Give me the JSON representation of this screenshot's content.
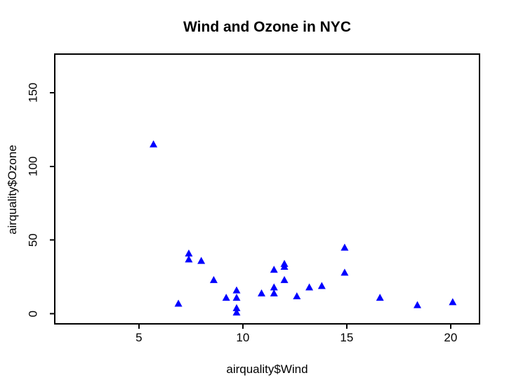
{
  "chart_data": {
    "type": "scatter",
    "title": "Wind and Ozone in NYC",
    "xlabel": "airquality$Wind",
    "ylabel": "airquality$Ozone",
    "marker": {
      "shape": "filled-triangle",
      "color": "#0000FF"
    },
    "axis_color": "#000000",
    "background_color": "#FFFFFF",
    "grid": false,
    "legend": false,
    "x_ticks": [
      5,
      10,
      15,
      20
    ],
    "y_ticks": [
      0,
      50,
      100,
      150
    ],
    "xlim": [
      0.95,
      21.39
    ],
    "ylim": [
      -6.8,
      176.1
    ],
    "points": [
      {
        "x": 7.4,
        "y": 41
      },
      {
        "x": 8.0,
        "y": 36
      },
      {
        "x": 12.6,
        "y": 12
      },
      {
        "x": 11.5,
        "y": 18
      },
      {
        "x": 14.9,
        "y": 28
      },
      {
        "x": 8.6,
        "y": 23
      },
      {
        "x": 13.8,
        "y": 19
      },
      {
        "x": 20.1,
        "y": 8
      },
      {
        "x": 6.9,
        "y": 7
      },
      {
        "x": 9.7,
        "y": 16
      },
      {
        "x": 9.2,
        "y": 11
      },
      {
        "x": 10.9,
        "y": 14
      },
      {
        "x": 13.2,
        "y": 18
      },
      {
        "x": 11.5,
        "y": 14
      },
      {
        "x": 12.0,
        "y": 34
      },
      {
        "x": 18.4,
        "y": 6
      },
      {
        "x": 11.5,
        "y": 30
      },
      {
        "x": 9.7,
        "y": 11
      },
      {
        "x": 9.7,
        "y": 1
      },
      {
        "x": 16.6,
        "y": 11
      },
      {
        "x": 9.7,
        "y": 4
      },
      {
        "x": 12.0,
        "y": 32
      },
      {
        "x": 12.0,
        "y": 23
      },
      {
        "x": 14.9,
        "y": 45
      },
      {
        "x": 5.7,
        "y": 115
      },
      {
        "x": 7.4,
        "y": 37
      }
    ]
  }
}
